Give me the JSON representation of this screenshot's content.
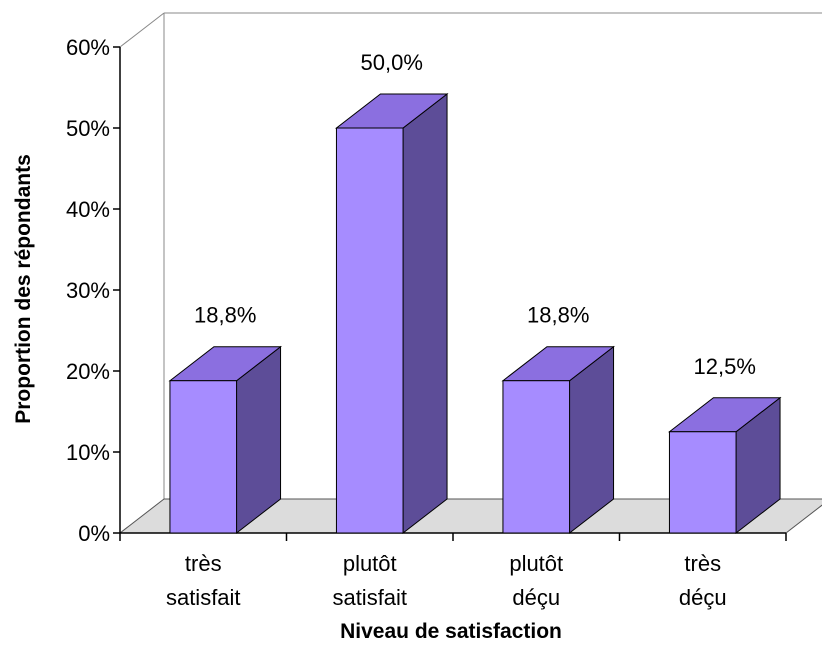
{
  "chart_data": {
    "type": "bar",
    "categories": [
      [
        "très",
        "satisfait"
      ],
      [
        "plutôt",
        "satisfait"
      ],
      [
        "plutôt",
        "déçu"
      ],
      [
        "très",
        "déçu"
      ]
    ],
    "values": [
      18.8,
      50.0,
      18.8,
      12.5
    ],
    "data_labels": [
      "18,8%",
      "50,0%",
      "18,8%",
      "12,5%"
    ],
    "title": "",
    "xlabel": "Niveau de satisfaction",
    "ylabel": "Proportion des répondants",
    "ylim": [
      0,
      60
    ],
    "yticks": [
      "0%",
      "10%",
      "20%",
      "30%",
      "40%",
      "50%",
      "60%"
    ],
    "grid": false,
    "legend": "none",
    "three_d": true,
    "colors": {
      "bar_front": "#a68cff",
      "bar_top": "#8b6fe0",
      "bar_side": "#5d4d98",
      "floor": "#dcdcdc"
    }
  }
}
